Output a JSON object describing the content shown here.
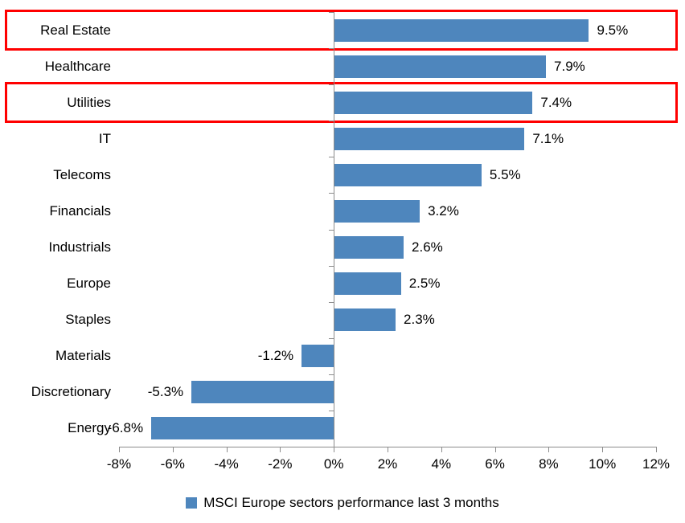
{
  "chart_data": {
    "type": "bar",
    "orientation": "horizontal",
    "title": "",
    "categories": [
      "Real Estate",
      "Healthcare",
      "Utilities",
      "IT",
      "Telecoms",
      "Financials",
      "Industrials",
      "Europe",
      "Staples",
      "Materials",
      "Discretionary",
      "Energy"
    ],
    "values": [
      9.5,
      7.9,
      7.4,
      7.1,
      5.5,
      3.2,
      2.6,
      2.5,
      2.3,
      -1.2,
      -5.3,
      -6.8
    ],
    "value_labels": [
      "9.5%",
      "7.9%",
      "7.4%",
      "7.1%",
      "5.5%",
      "3.2%",
      "2.6%",
      "2.5%",
      "2.3%",
      "-1.2%",
      "-5.3%",
      "-6.8%"
    ],
    "xlim": [
      -8,
      12
    ],
    "x_tick_step": 2,
    "x_tick_labels": [
      "-8%",
      "-6%",
      "-4%",
      "-2%",
      "0%",
      "2%",
      "4%",
      "6%",
      "8%",
      "10%",
      "12%"
    ],
    "grid": false,
    "legend_position": "bottom-center",
    "legend": "MSCI Europe sectors performance last 3 months",
    "bar_color": "#4E86BD",
    "axis_color": "#8C8C8C",
    "highlight_box_color": "#FF0000",
    "highlighted_categories": [
      "Real Estate",
      "Utilities"
    ]
  }
}
